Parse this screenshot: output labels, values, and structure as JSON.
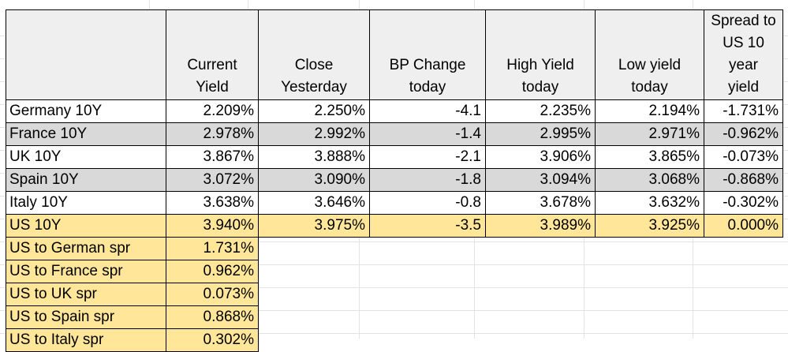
{
  "table": {
    "headers": [
      "",
      "Current Yield",
      "Close Yesterday",
      "BP Change today",
      "High Yield today",
      "Low yield today",
      "Spread to US 10 year yield"
    ],
    "header_lines": [
      [],
      [
        "Current",
        "Yield"
      ],
      [
        "Close",
        "Yesterday"
      ],
      [
        "BP Change",
        "today"
      ],
      [
        "High Yield",
        "today"
      ],
      [
        "Low yield",
        "today"
      ],
      [
        "Spread to",
        "US 10 year",
        "yield"
      ]
    ],
    "rows": [
      {
        "name": "Germany 10Y",
        "current": "2.209%",
        "close": "2.250%",
        "bp": "-4.1",
        "high": "2.235%",
        "low": "2.194%",
        "spread": "-1.731%",
        "style": "white"
      },
      {
        "name": "France 10Y",
        "current": "2.978%",
        "close": "2.992%",
        "bp": "-1.4",
        "high": "2.995%",
        "low": "2.971%",
        "spread": "-0.962%",
        "style": "gray"
      },
      {
        "name": "UK 10Y",
        "current": "3.867%",
        "close": "3.888%",
        "bp": "-2.1",
        "high": "3.906%",
        "low": "3.865%",
        "spread": "-0.073%",
        "style": "white"
      },
      {
        "name": "Spain 10Y",
        "current": "3.072%",
        "close": "3.090%",
        "bp": "-1.8",
        "high": "3.094%",
        "low": "3.068%",
        "spread": "-0.868%",
        "style": "gray"
      },
      {
        "name": "Italy 10Y",
        "current": "3.638%",
        "close": "3.646%",
        "bp": "-0.8",
        "high": "3.678%",
        "low": "3.632%",
        "spread": "-0.302%",
        "style": "white"
      },
      {
        "name": "US 10Y",
        "current": "3.940%",
        "close": "3.975%",
        "bp": "-3.5",
        "high": "3.989%",
        "low": "3.925%",
        "spread": "0.000%",
        "style": "gold"
      }
    ],
    "spreads": [
      {
        "label": "US to German spr",
        "value": "1.731%"
      },
      {
        "label": "US to France spr",
        "value": "0.962%"
      },
      {
        "label": "US to UK spr",
        "value": "0.073%"
      },
      {
        "label": "US to Spain spr",
        "value": "0.868%"
      },
      {
        "label": "US to Italy spr",
        "value": "0.302%"
      }
    ]
  },
  "colors": {
    "header_fill": "#efefef",
    "alt_row_fill": "#d9d9d9",
    "highlight_fill": "#ffe699",
    "border": "#000000"
  }
}
